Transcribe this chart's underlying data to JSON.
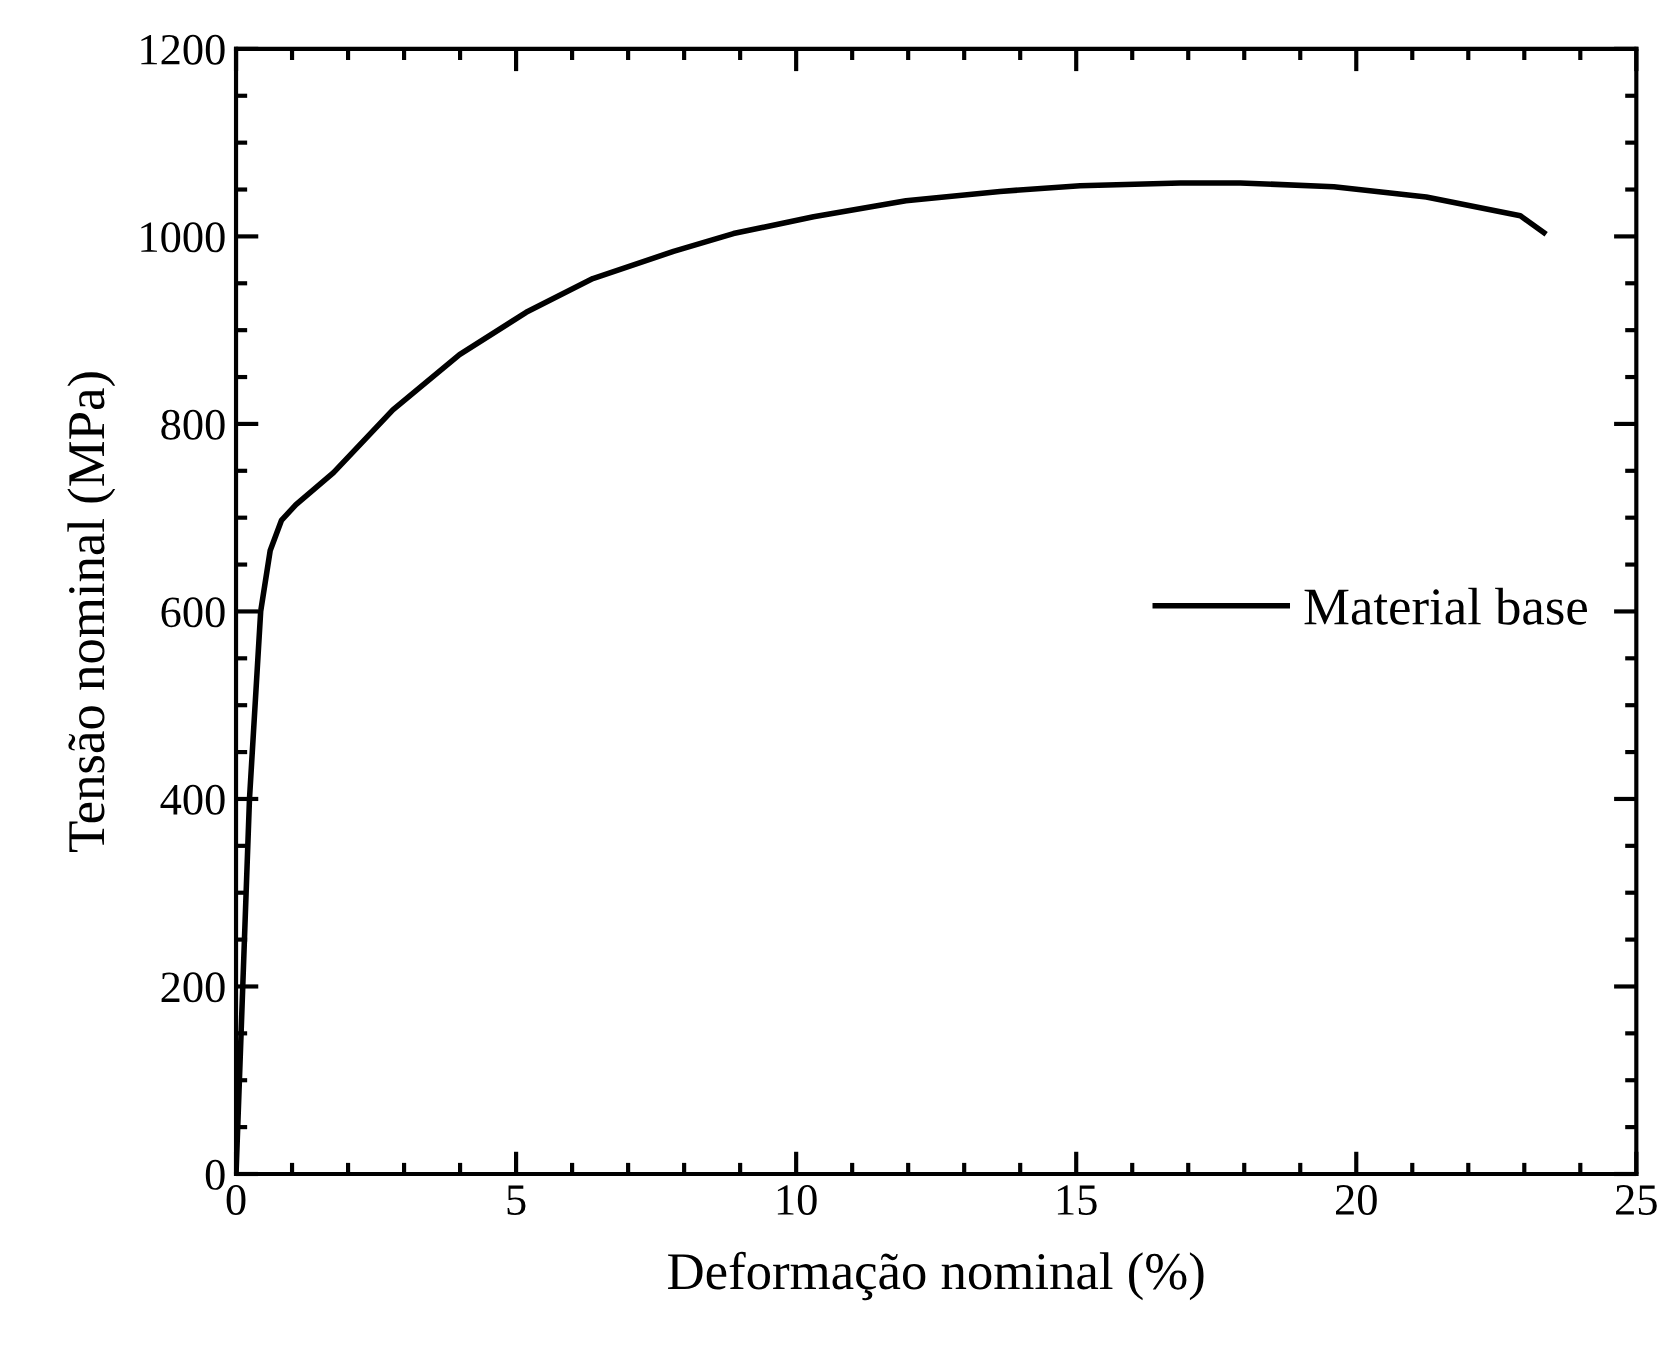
{
  "chart_data": {
    "type": "line",
    "xlabel": "Deformação nominal (%)",
    "ylabel": "Tensão nominal (MPa)",
    "xlim": [
      0,
      25
    ],
    "xticks": [
      0,
      5,
      10,
      15,
      20,
      25
    ],
    "ylim": [
      0,
      1200
    ],
    "yticks": [
      0,
      200,
      400,
      600,
      800,
      1000,
      1200
    ],
    "grid": false,
    "legend": "right",
    "marker": "none",
    "line_style": "solid",
    "series": [
      {
        "name": "Material base",
        "color": "#000000",
        "x": [
          0,
          0.12,
          0.24,
          0.44,
          0.61,
          0.81,
          1.07,
          1.74,
          2.8,
          3.99,
          5.18,
          6.37,
          7.81,
          8.88,
          10.31,
          11.96,
          13.64,
          15.07,
          16.86,
          17.93,
          19.6,
          21.25,
          22.93,
          23.35
        ],
        "values": [
          0,
          200,
          400,
          600,
          665,
          697,
          714,
          748,
          815,
          874,
          919,
          955,
          984,
          1003,
          1021,
          1038,
          1048,
          1054,
          1057,
          1057,
          1053,
          1042,
          1022,
          1004
        ]
      }
    ]
  }
}
